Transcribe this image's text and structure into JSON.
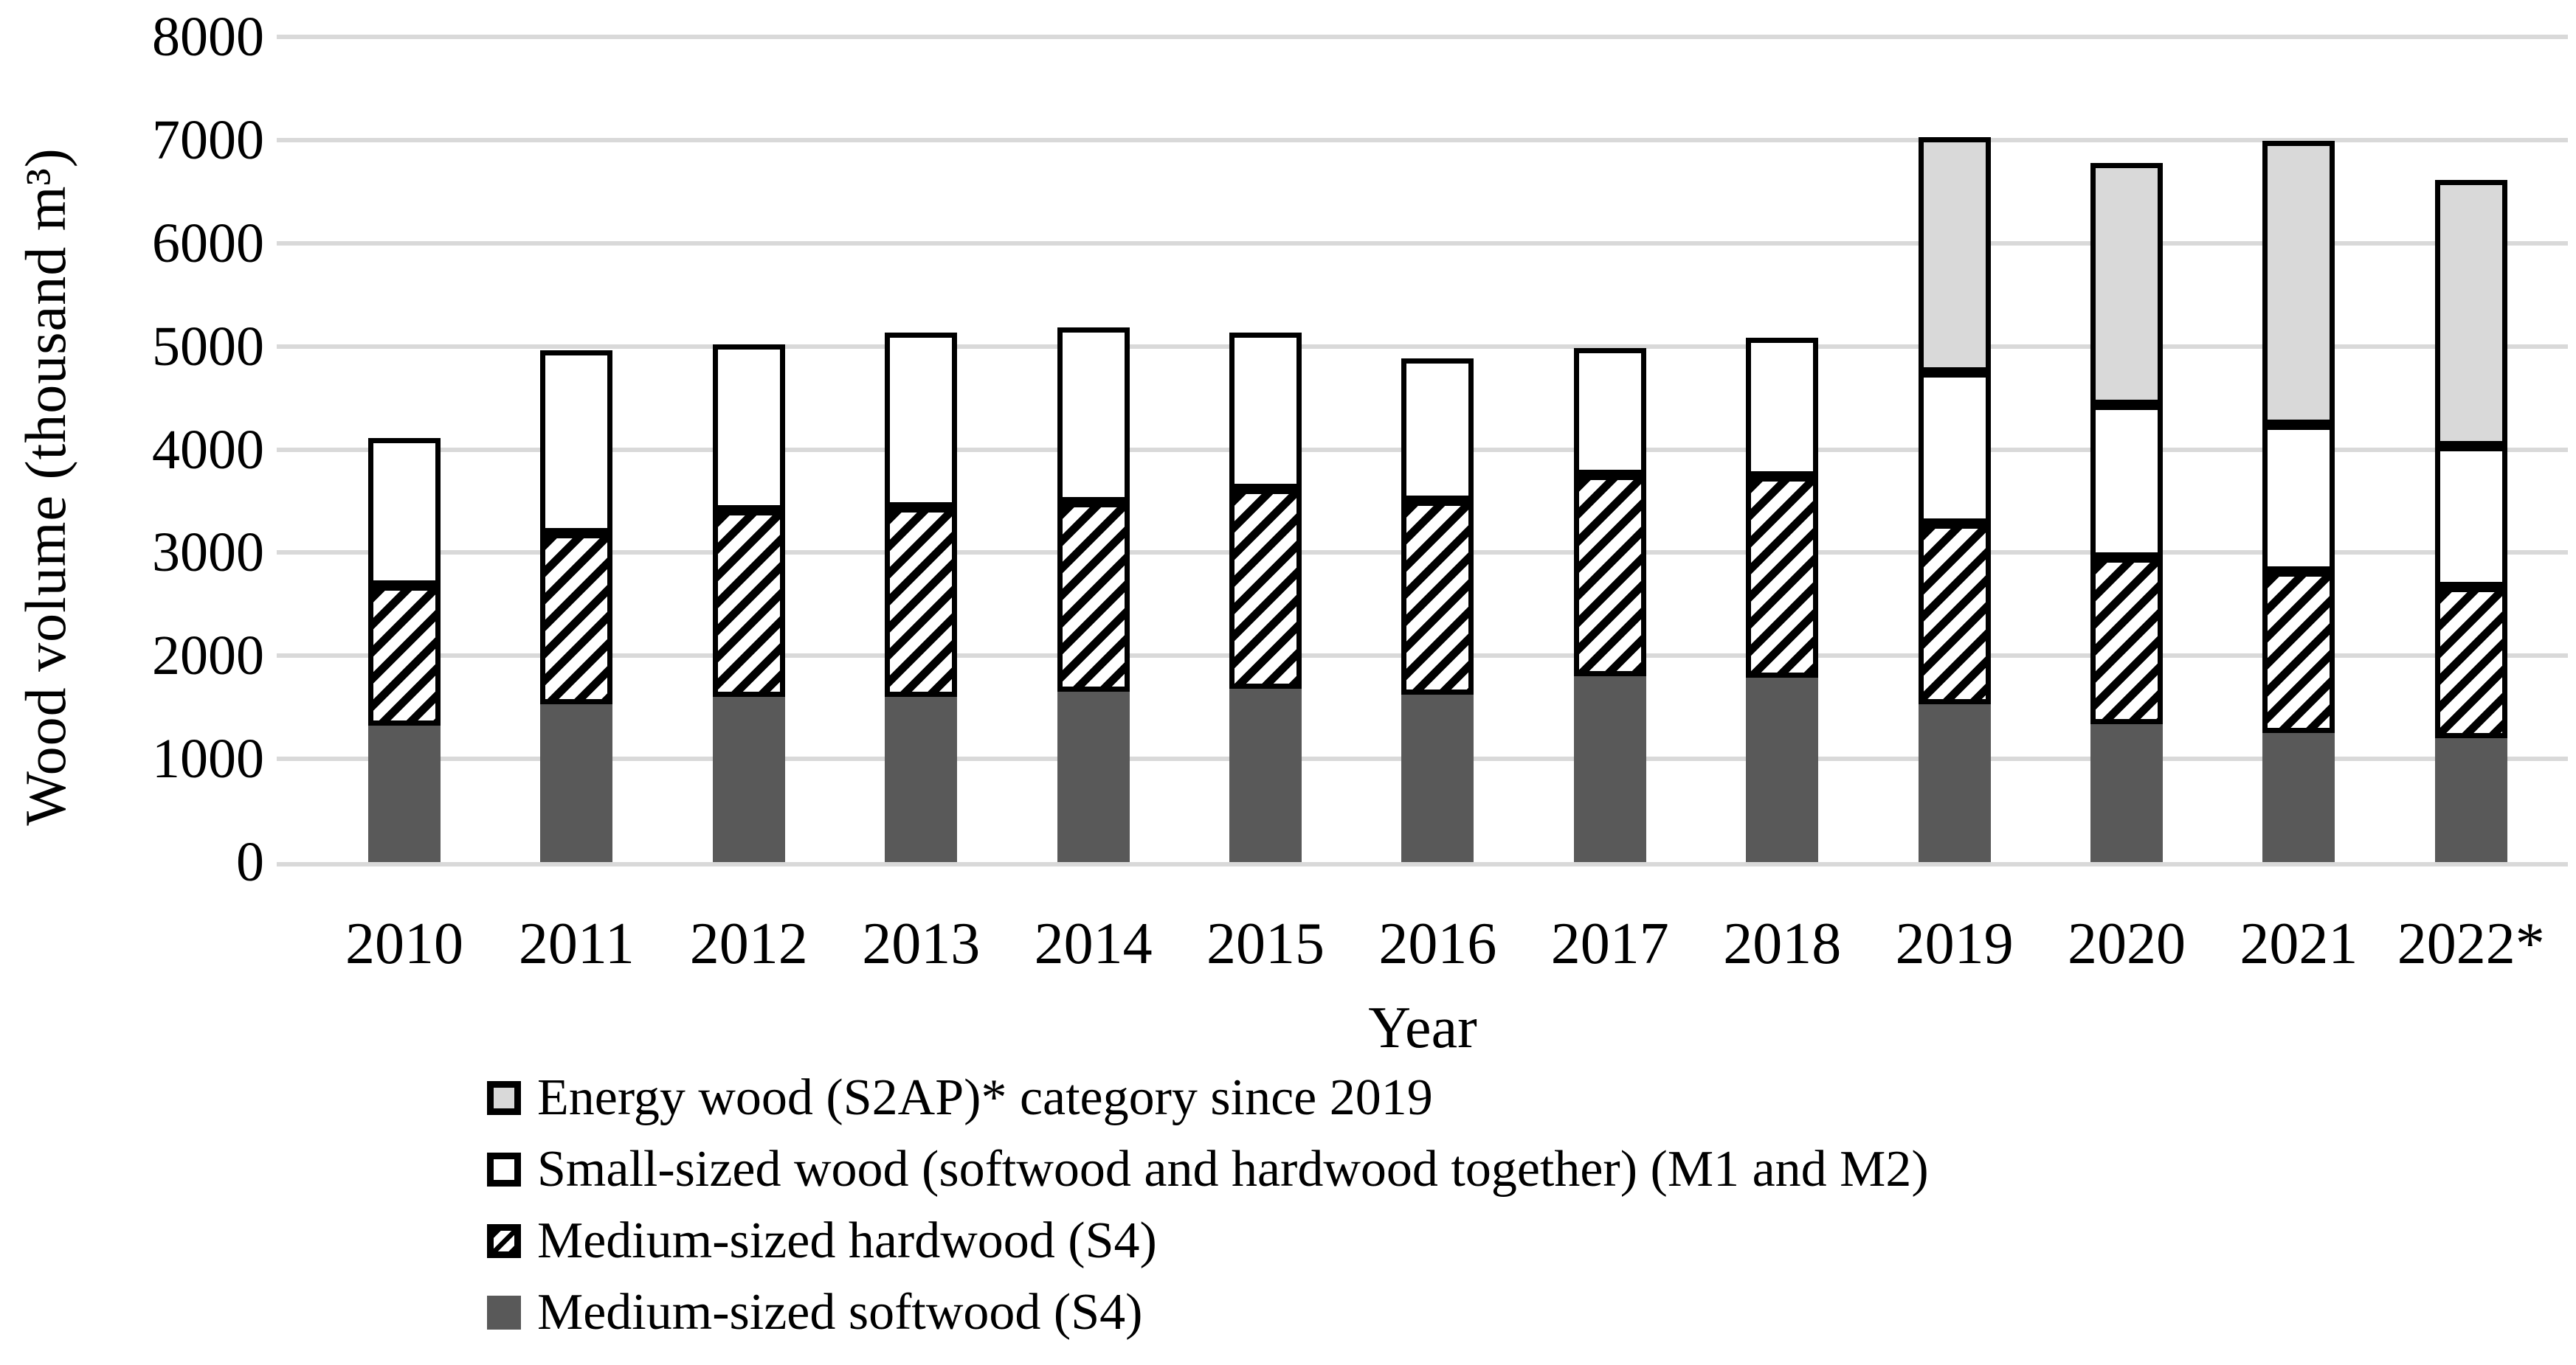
{
  "chart_data": {
    "type": "bar",
    "stacked": true,
    "title": "",
    "xlabel": "Year",
    "ylabel": "Wood volume (thousand m³)",
    "ylim": [
      0,
      8000
    ],
    "ytick_step": 1000,
    "yticks": [
      0,
      1000,
      2000,
      3000,
      4000,
      5000,
      6000,
      7000,
      8000
    ],
    "grid": true,
    "legend_position": "bottom-left",
    "categories": [
      "2010",
      "2011",
      "2012",
      "2013",
      "2014",
      "2015",
      "2016",
      "2017",
      "2018",
      "2019",
      "2020",
      "2021",
      "2022*"
    ],
    "series": [
      {
        "key": "softwood",
        "name": "Medium-sized softwood (S4)",
        "style": "solid",
        "color": "#595959",
        "values": [
          1320,
          1530,
          1600,
          1600,
          1650,
          1680,
          1620,
          1800,
          1790,
          1530,
          1340,
          1250,
          1200
        ]
      },
      {
        "key": "hardwood",
        "name": "Medium-sized hardwood (S4)",
        "style": "diagonal-hatch",
        "color": "#000000",
        "values": [
          1360,
          1660,
          1810,
          1840,
          1840,
          1940,
          1880,
          1950,
          1950,
          1750,
          1610,
          1570,
          1470
        ]
      },
      {
        "key": "small",
        "name": "Small-sized wood (softwood and hardwood together) (M1 and M2)",
        "style": "white",
        "color": "#ffffff",
        "values": [
          1430,
          1770,
          1610,
          1690,
          1690,
          1510,
          1380,
          1230,
          1340,
          1470,
          1480,
          1420,
          1360
        ]
      },
      {
        "key": "energy",
        "name": "Energy wood (S2AP)* category since 2019",
        "style": "solid",
        "color": "#d9d9d9",
        "values": [
          0,
          0,
          0,
          0,
          0,
          0,
          0,
          0,
          0,
          2280,
          2350,
          2750,
          2580
        ]
      }
    ],
    "totals": [
      4110,
      4960,
      5020,
      5130,
      5180,
      5130,
      4880,
      4980,
      5080,
      7030,
      6780,
      6990,
      6610
    ],
    "legend_order": [
      "energy",
      "small",
      "hardwood",
      "softwood"
    ]
  },
  "colors": {
    "softwood_fill": "#595959",
    "energy_fill": "#d9d9d9",
    "gridline": "#d9d9d9",
    "segment_border": "#000000",
    "background": "#ffffff"
  }
}
